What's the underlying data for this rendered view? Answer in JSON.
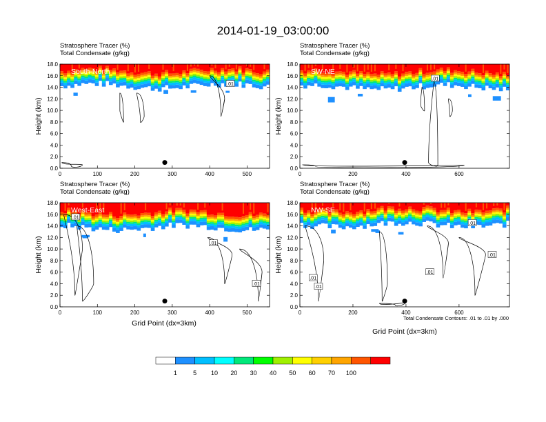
{
  "figure": {
    "title": "2014-01-19_03:00:00",
    "colorbar": {
      "levels": [
        "1",
        "5",
        "10",
        "20",
        "30",
        "40",
        "50",
        "60",
        "70",
        "100"
      ],
      "colors": [
        "#ffffff",
        "#1e90ff",
        "#00bfff",
        "#00ffff",
        "#00e87a",
        "#00ff00",
        "#a0f000",
        "#ffff00",
        "#ffd000",
        "#ffa500",
        "#ff5500",
        "#ff0000"
      ]
    },
    "contour_note": "Total Condensate Contours: .01 to .01 by .000",
    "xlabel": "Grid Point (dx=3km)",
    "ylabel": "Height (km)"
  },
  "chart_data": [
    {
      "type": "heatmap",
      "panel_label": "South-North",
      "header_line1": "Stratosphere Tracer   (%)",
      "header_line2": "Total Condensate   (g/kg)",
      "xlim": [
        0,
        560
      ],
      "xticks": [
        "0",
        "100",
        "200",
        "300",
        "400",
        "500"
      ],
      "xtick_values": [
        0,
        100,
        200,
        300,
        400,
        500
      ],
      "ylim": [
        0,
        18
      ],
      "yticks": [
        "0.0",
        "2.0",
        "4.0",
        "6.0",
        "8.0",
        "10.0",
        "12.0",
        "14.0",
        "16.0",
        "18.0"
      ],
      "ytick_values": [
        0,
        2,
        4,
        6,
        8,
        10,
        12,
        14,
        16,
        18
      ],
      "tropopause_km": 14.8,
      "marker": {
        "x": 280,
        "y": 1.0
      },
      "contour_labels": [
        {
          "text": ".01",
          "x": 455,
          "y": 14.6
        }
      ]
    },
    {
      "type": "heatmap",
      "panel_label": "SW-NE",
      "header_line1": "Stratosphere Tracer   (%)",
      "header_line2": "Total Condensate   (g/kg)",
      "xlim": [
        0,
        790
      ],
      "xticks": [
        "0",
        "200",
        "400",
        "600"
      ],
      "xtick_values": [
        0,
        200,
        400,
        600
      ],
      "ylim": [
        0,
        18
      ],
      "yticks": [
        "0.0",
        "2.0",
        "4.0",
        "6.0",
        "8.0",
        "10.0",
        "12.0",
        "14.0",
        "16.0",
        "18.0"
      ],
      "ytick_values": [
        0,
        2,
        4,
        6,
        8,
        10,
        12,
        14,
        16,
        18
      ],
      "tropopause_km": 14.6,
      "marker": {
        "x": 395,
        "y": 1.0
      },
      "contour_labels": [
        {
          "text": ".01",
          "x": 510,
          "y": 15.5
        }
      ]
    },
    {
      "type": "heatmap",
      "panel_label": "West-East",
      "header_line1": "Stratosphere Tracer   (%)",
      "header_line2": "Total Condensate   (g/kg)",
      "xlim": [
        0,
        560
      ],
      "xticks": [
        "0",
        "100",
        "200",
        "300",
        "400",
        "500"
      ],
      "xtick_values": [
        0,
        100,
        200,
        300,
        400,
        500
      ],
      "ylim": [
        0,
        18
      ],
      "yticks": [
        "0.0",
        "2.0",
        "4.0",
        "6.0",
        "8.0",
        "10.0",
        "12.0",
        "14.0",
        "16.0",
        "18.0"
      ],
      "ytick_values": [
        0,
        2,
        4,
        6,
        8,
        10,
        12,
        14,
        16,
        18
      ],
      "tropopause_km": 14.3,
      "marker": {
        "x": 280,
        "y": 1.0
      },
      "contour_labels": [
        {
          "text": ".01",
          "x": 42,
          "y": 15.5
        },
        {
          "text": ".01",
          "x": 410,
          "y": 11.0
        },
        {
          "text": ".01",
          "x": 525,
          "y": 4.0
        }
      ]
    },
    {
      "type": "heatmap",
      "panel_label": "NW-SE",
      "header_line1": "Stratosphere Tracer   (%)",
      "header_line2": "Total Condensate   (g/kg)",
      "xlim": [
        0,
        790
      ],
      "xticks": [
        "0",
        "200",
        "400",
        "600"
      ],
      "xtick_values": [
        0,
        200,
        400,
        600
      ],
      "ylim": [
        0,
        18
      ],
      "yticks": [
        "0.0",
        "2.0",
        "4.0",
        "6.0",
        "8.0",
        "10.0",
        "12.0",
        "14.0",
        "16.0",
        "18.0"
      ],
      "ytick_values": [
        0,
        2,
        4,
        6,
        8,
        10,
        12,
        14,
        16,
        18
      ],
      "tropopause_km": 14.8,
      "marker": {
        "x": 395,
        "y": 1.0
      },
      "contour_labels": [
        {
          "text": ".01",
          "x": 50,
          "y": 5.0
        },
        {
          "text": ".01",
          "x": 70,
          "y": 3.5
        },
        {
          "text": ".01",
          "x": 490,
          "y": 6.0
        },
        {
          "text": ".01",
          "x": 725,
          "y": 9.0
        },
        {
          "text": ".01",
          "x": 650,
          "y": 14.5
        }
      ]
    }
  ]
}
